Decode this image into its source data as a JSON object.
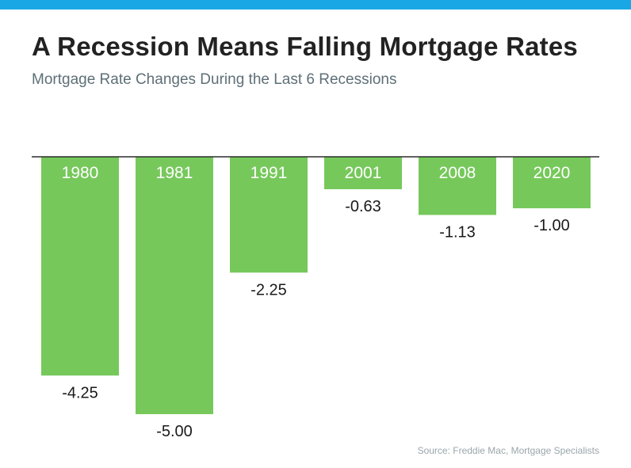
{
  "header": {
    "title": "A Recession Means Falling Mortgage Rates",
    "subtitle": "Mortgage Rate Changes During the Last 6 Recessions"
  },
  "footer": {
    "source": "Source: Freddie Mac, Mortgage Specialists"
  },
  "colors": {
    "accent_bar": "#1aa7e6",
    "bar": "#76c85b",
    "axis": "#2b2b2b",
    "label_inside": "#ffffff",
    "label_value": "#1a1a1a"
  },
  "chart_data": {
    "type": "bar",
    "categories": [
      "1980",
      "1981",
      "1991",
      "2001",
      "2008",
      "2020"
    ],
    "values": [
      -4.25,
      -5.0,
      -2.25,
      -0.63,
      -1.13,
      -1.0
    ],
    "value_labels": [
      "-4.25",
      "-5.00",
      "-2.25",
      "-0.63",
      "-1.13",
      "-1.00"
    ],
    "title": "A Recession Means Falling Mortgage Rates",
    "subtitle": "Mortgage Rate Changes During the Last 6 Recessions",
    "xlabel": "",
    "ylabel": "",
    "ylim": [
      -5,
      0
    ],
    "grid": false,
    "legend": "none"
  }
}
